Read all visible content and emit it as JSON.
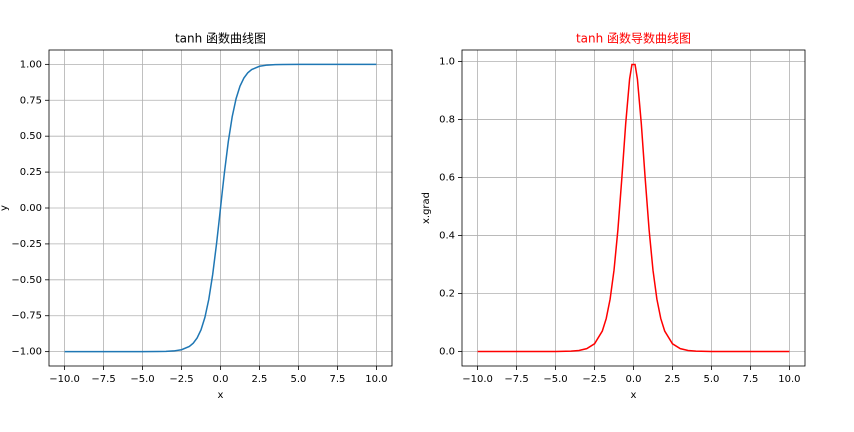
{
  "chart_data": [
    {
      "type": "line",
      "title": "tanh 函数曲线图",
      "title_color": "#000000",
      "x_label": "x",
      "y_label": "y",
      "color": "#1f77b4",
      "grid": true,
      "x": [
        -10,
        -8,
        -6,
        -5,
        -4,
        -3.5,
        -3,
        -2.5,
        -2,
        -1.75,
        -1.5,
        -1.25,
        -1,
        -0.75,
        -0.5,
        -0.25,
        -0.1,
        0.1,
        0.25,
        0.5,
        0.75,
        1,
        1.25,
        1.5,
        1.75,
        2,
        2.5,
        3,
        3.5,
        4,
        5,
        6,
        8,
        10
      ],
      "values": [
        -1,
        -1,
        -1,
        -0.9999,
        -0.9993,
        -0.9982,
        -0.9951,
        -0.9866,
        -0.964,
        -0.9414,
        -0.9051,
        -0.8483,
        -0.7616,
        -0.6351,
        -0.4621,
        -0.2449,
        -0.0997,
        0.0997,
        0.2449,
        0.4621,
        0.6351,
        0.7616,
        0.8483,
        0.9051,
        0.9414,
        0.964,
        0.9866,
        0.9951,
        0.9982,
        0.9993,
        0.9999,
        1,
        1,
        1
      ],
      "xlim": [
        -11,
        11
      ],
      "ylim": [
        -1.1,
        1.1
      ],
      "xticks": [
        {
          "value": -10,
          "label": "−10.0"
        },
        {
          "value": -7.5,
          "label": "−7.5"
        },
        {
          "value": -5,
          "label": "−5.0"
        },
        {
          "value": -2.5,
          "label": "−2.5"
        },
        {
          "value": 0,
          "label": "0.0"
        },
        2.5,
        {
          "value": 5,
          "label": "5.0"
        },
        7.5,
        {
          "value": 10,
          "label": "10.0"
        }
      ],
      "yticks": [
        {
          "value": -1,
          "label": "−1.00"
        },
        {
          "value": -0.75,
          "label": "−0.75"
        },
        {
          "value": -0.5,
          "label": "−0.50"
        },
        {
          "value": -0.25,
          "label": "−0.25"
        },
        {
          "value": 0,
          "label": "0.00"
        },
        0.25,
        {
          "value": 0.5,
          "label": "0.50"
        },
        0.75,
        {
          "value": 1,
          "label": "1.00"
        }
      ]
    },
    {
      "type": "line",
      "title": "tanh 函数导数曲线图",
      "title_color": "#ff0000",
      "x_label": "x",
      "y_label": "x.grad",
      "color": "#ff0000",
      "grid": true,
      "x": [
        -10,
        -8,
        -6,
        -5,
        -4,
        -3.5,
        -3,
        -2.5,
        -2,
        -1.75,
        -1.5,
        -1.25,
        -1,
        -0.75,
        -0.5,
        -0.25,
        -0.1,
        0.1,
        0.25,
        0.5,
        0.75,
        1,
        1.25,
        1.5,
        1.75,
        2,
        2.5,
        3,
        3.5,
        4,
        5,
        6,
        8,
        10
      ],
      "values": [
        0,
        0,
        0,
        0.0002,
        0.0013,
        0.0036,
        0.0099,
        0.0266,
        0.0707,
        0.1137,
        0.1807,
        0.2804,
        0.42,
        0.5966,
        0.7864,
        0.94,
        0.9901,
        0.9901,
        0.94,
        0.7864,
        0.5966,
        0.42,
        0.2804,
        0.1807,
        0.1137,
        0.0707,
        0.0266,
        0.0099,
        0.0036,
        0.0013,
        0.0002,
        0,
        0,
        0
      ],
      "xlim": [
        -11,
        11
      ],
      "ylim": [
        -0.05,
        1.04
      ],
      "xticks": [
        {
          "value": -10,
          "label": "−10.0"
        },
        {
          "value": -7.5,
          "label": "−7.5"
        },
        {
          "value": -5,
          "label": "−5.0"
        },
        {
          "value": -2.5,
          "label": "−2.5"
        },
        {
          "value": 0,
          "label": "0.0"
        },
        2.5,
        {
          "value": 5,
          "label": "5.0"
        },
        7.5,
        {
          "value": 10,
          "label": "10.0"
        }
      ],
      "yticks": [
        {
          "value": 0,
          "label": "0.0"
        },
        0.2,
        0.4,
        0.6,
        0.8,
        {
          "value": 1,
          "label": "1.0"
        }
      ]
    }
  ]
}
